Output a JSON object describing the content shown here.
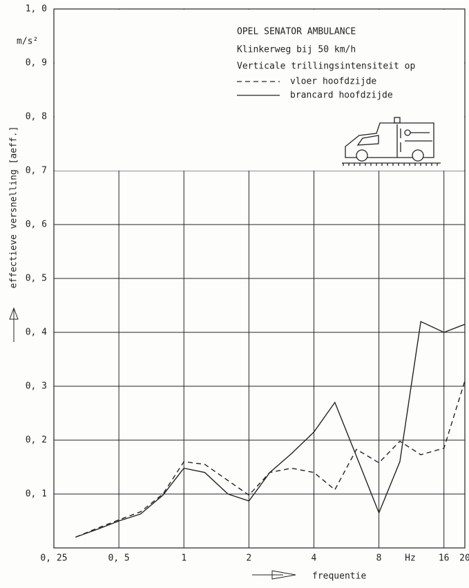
{
  "chart_data": {
    "type": "line",
    "title_lines": [
      "OPEL SENATOR AMBULANCE",
      "Klinkerweg bij 50 km/h",
      "Verticale trillingsintensiteit op"
    ],
    "y_unit": "m/s²",
    "x_unit": "Hz",
    "ylabel": "effectieve versnelling [aeff.]",
    "xlabel": "frequentie",
    "x_log": true,
    "x": [
      0.315,
      0.4,
      0.5,
      0.63,
      0.8,
      1,
      1.25,
      1.6,
      2,
      2.5,
      3.15,
      4,
      5,
      6.3,
      8,
      10,
      12.5,
      16,
      20
    ],
    "series": [
      {
        "name": "vloer hoofdzijde",
        "color": "#222222",
        "dash": true,
        "values": [
          0.02,
          0.037,
          0.052,
          0.067,
          0.1,
          0.16,
          0.155,
          0.125,
          0.098,
          0.14,
          0.148,
          0.14,
          0.108,
          0.183,
          0.158,
          0.198,
          0.173,
          0.185,
          0.31
        ]
      },
      {
        "name": "brancard hoofdzijde",
        "color": "#222222",
        "dash": false,
        "values": [
          0.02,
          0.035,
          0.05,
          0.063,
          0.098,
          0.148,
          0.14,
          0.1,
          0.087,
          0.14,
          0.175,
          0.215,
          0.27,
          0.17,
          0.065,
          0.16,
          0.42,
          0.4,
          0.415
        ]
      }
    ],
    "xlim": [
      0.25,
      20
    ],
    "xticks": [
      {
        "value": 0.25,
        "label": "0, 25"
      },
      {
        "value": 0.5,
        "label": "0, 5"
      },
      1,
      2,
      4,
      8,
      16,
      20
    ],
    "ylim": [
      0,
      1.0
    ],
    "yticks": [
      {
        "value": 0.1,
        "label": "0, 1"
      },
      {
        "value": 0.2,
        "label": "0, 2"
      },
      {
        "value": 0.3,
        "label": "0, 3"
      },
      {
        "value": 0.4,
        "label": "0, 4"
      },
      {
        "value": 0.5,
        "label": "0, 5"
      },
      {
        "value": 0.6,
        "label": "0, 6"
      },
      {
        "value": 0.7,
        "label": "0, 7"
      },
      {
        "value": 0.8,
        "label": "0, 8"
      },
      {
        "value": 0.9,
        "label": "0, 9"
      },
      {
        "value": 1.0,
        "label": "1, 0"
      }
    ],
    "grid": true
  }
}
